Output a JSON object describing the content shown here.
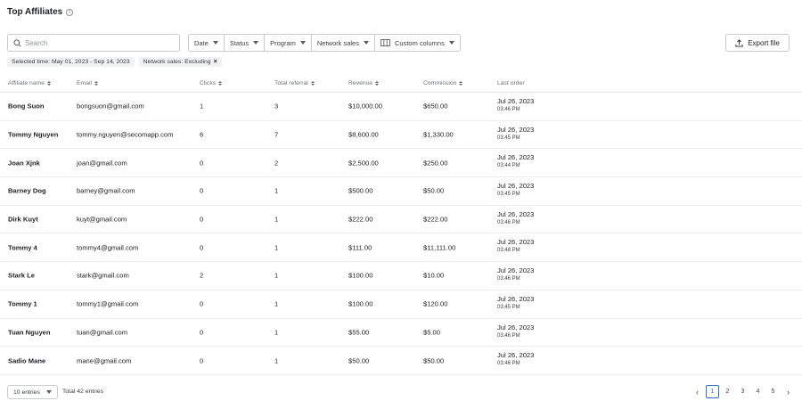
{
  "header": {
    "title": "Top Affiliates",
    "info_icon": "info-icon"
  },
  "toolbar": {
    "search_placeholder": "Search",
    "filters": [
      "Date",
      "Status",
      "Program",
      "Network sales",
      "Custom columns"
    ],
    "export_label": "Export file"
  },
  "tags": {
    "selected_time": "Selected time: May 01, 2023 - Sep 14, 2023",
    "network_sales": "Network sales: Excluding",
    "close": "×"
  },
  "table": {
    "columns": [
      "Affiliate name",
      "Email",
      "Clicks",
      "Total referral",
      "Revenue",
      "Commission",
      "Last order"
    ],
    "rows": [
      {
        "name": "Bong Suon",
        "email": "bongsuon@gmail.com",
        "clicks": "1",
        "referral": "3",
        "revenue": "$10,000.00",
        "commission": "$650.00",
        "date": "Jul 26, 2023",
        "time": "03:46 PM"
      },
      {
        "name": "Tommy Nguyen",
        "email": "tommy.nguyen@secomapp.com",
        "clicks": "6",
        "referral": "7",
        "revenue": "$8,600.00",
        "commission": "$1,330.00",
        "date": "Jul 26, 2023",
        "time": "03:45 PM"
      },
      {
        "name": "Joan Xjnk",
        "email": "joan@gmail.com",
        "clicks": "0",
        "referral": "2",
        "revenue": "$2,500.00",
        "commission": "$250.00",
        "date": "Jul 26, 2023",
        "time": "03:44 PM"
      },
      {
        "name": "Barney Dog",
        "email": "barney@gmail.com",
        "clicks": "0",
        "referral": "1",
        "revenue": "$500.00",
        "commission": "$50.00",
        "date": "Jul 26, 2023",
        "time": "03:45 PM"
      },
      {
        "name": "Dirk Kuyt",
        "email": "kuyt@gmail.com",
        "clicks": "0",
        "referral": "1",
        "revenue": "$222.00",
        "commission": "$222.00",
        "date": "Jul 26, 2023",
        "time": "03:46 PM"
      },
      {
        "name": "Tommy 4",
        "email": "tommy4@gmail.com",
        "clicks": "0",
        "referral": "1",
        "revenue": "$111.00",
        "commission": "$11,111.00",
        "date": "Jul 26, 2023",
        "time": "03:48 PM"
      },
      {
        "name": "Stark Le",
        "email": "stark@gmail.com",
        "clicks": "2",
        "referral": "1",
        "revenue": "$100.00",
        "commission": "$10.00",
        "date": "Jul 26, 2023",
        "time": "03:46 PM"
      },
      {
        "name": "Tommy 1",
        "email": "tommy1@gmail.com",
        "clicks": "0",
        "referral": "1",
        "revenue": "$100.00",
        "commission": "$120.00",
        "date": "Jul 26, 2023",
        "time": "03:45 PM"
      },
      {
        "name": "Tuan Nguyen",
        "email": "tuan@gmail.com",
        "clicks": "0",
        "referral": "1",
        "revenue": "$55.00",
        "commission": "$5.00",
        "date": "Jul 26, 2023",
        "time": "03:46 PM"
      },
      {
        "name": "Sadio Mane",
        "email": "mane@gmail.com",
        "clicks": "0",
        "referral": "1",
        "revenue": "$50.00",
        "commission": "$50.00",
        "date": "Jul 26, 2023",
        "time": "03:46 PM"
      }
    ]
  },
  "footer": {
    "entries_label": "10 entries",
    "total_label": "Total 42 entries",
    "pages": [
      "1",
      "2",
      "3",
      "4",
      "5"
    ],
    "active_page": "1"
  },
  "colors": {
    "accent": "#2c6ecb",
    "border": "#c9cccf",
    "text": "#202223"
  }
}
